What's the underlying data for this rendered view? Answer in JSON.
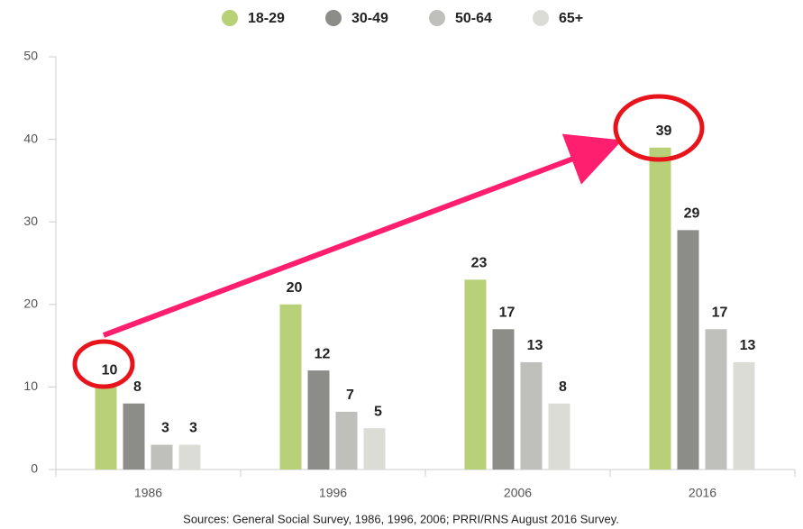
{
  "chart_data": {
    "type": "bar",
    "categories": [
      "1986",
      "1996",
      "2006",
      "2016"
    ],
    "series": [
      {
        "name": "18-29",
        "color": "#b8d078",
        "values": [
          10,
          20,
          23,
          39
        ]
      },
      {
        "name": "30-49",
        "color": "#8c8c89",
        "values": [
          8,
          12,
          17,
          29
        ]
      },
      {
        "name": "50-64",
        "color": "#bfbfbb",
        "values": [
          3,
          7,
          13,
          17
        ]
      },
      {
        "name": "65+",
        "color": "#dcdcd7",
        "values": [
          3,
          5,
          8,
          13
        ]
      }
    ],
    "ylim": [
      0,
      50
    ],
    "yticks": [
      0,
      10,
      20,
      30,
      40,
      50
    ],
    "source": "Sources: General Social Survey, 1986, 1996, 2006; PRRI/RNS August 2016 Survey."
  }
}
